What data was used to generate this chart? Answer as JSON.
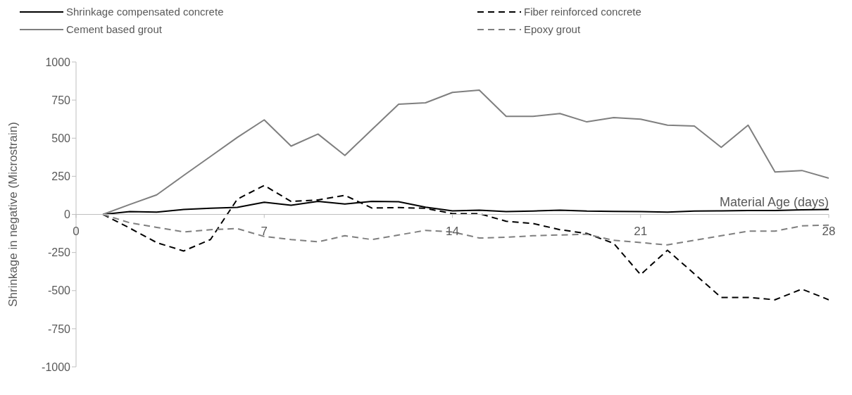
{
  "chart_data": {
    "type": "line",
    "xlabel": "Material Age (days)",
    "ylabel": "Shrinkage in negative (Microstrain)",
    "x": [
      1,
      2,
      3,
      4,
      5,
      6,
      7,
      8,
      9,
      10,
      11,
      12,
      13,
      14,
      15,
      16,
      17,
      18,
      19,
      20,
      21,
      22,
      23,
      24,
      25,
      26,
      27,
      28
    ],
    "xlim": [
      0,
      28
    ],
    "xticks": [
      0,
      7,
      14,
      21,
      28
    ],
    "ylim": [
      -1000,
      1000
    ],
    "yticks": [
      -1000,
      -750,
      -500,
      -250,
      0,
      250,
      500,
      750,
      1000
    ],
    "legend": "top",
    "marker": "none",
    "series": [
      {
        "name": "Shrinkage compensated concrete",
        "color": "#000000",
        "line_style": "solid",
        "values": [
          0,
          18,
          15,
          32,
          40,
          46,
          80,
          60,
          85,
          68,
          85,
          83,
          47,
          23,
          28,
          18,
          22,
          28,
          22,
          20,
          18,
          15,
          22,
          23,
          25,
          25,
          30,
          32
        ]
      },
      {
        "name": "Fiber reinforced concrete",
        "color": "#000000",
        "line_style": "dashed",
        "values": [
          0,
          -90,
          -185,
          -240,
          -165,
          100,
          190,
          85,
          95,
          125,
          42,
          45,
          40,
          5,
          5,
          -45,
          -60,
          -100,
          -125,
          -190,
          -395,
          -235,
          -390,
          -545,
          -545,
          -560,
          -490,
          -560
        ]
      },
      {
        "name": "Cement based grout",
        "color": "#7f7f7f",
        "line_style": "solid",
        "values": [
          0,
          65,
          128,
          255,
          380,
          505,
          620,
          448,
          527,
          387,
          555,
          723,
          732,
          800,
          815,
          643,
          643,
          662,
          607,
          635,
          625,
          585,
          580,
          440,
          585,
          278,
          288,
          238
        ]
      },
      {
        "name": "Epoxy grout",
        "color": "#7f7f7f",
        "line_style": "dashed",
        "values": [
          0,
          -55,
          -85,
          -115,
          -100,
          -93,
          -145,
          -165,
          -180,
          -140,
          -165,
          -135,
          -105,
          -115,
          -155,
          -150,
          -140,
          -135,
          -130,
          -170,
          -185,
          -200,
          -170,
          -140,
          -110,
          -110,
          -75,
          -70
        ]
      }
    ]
  }
}
